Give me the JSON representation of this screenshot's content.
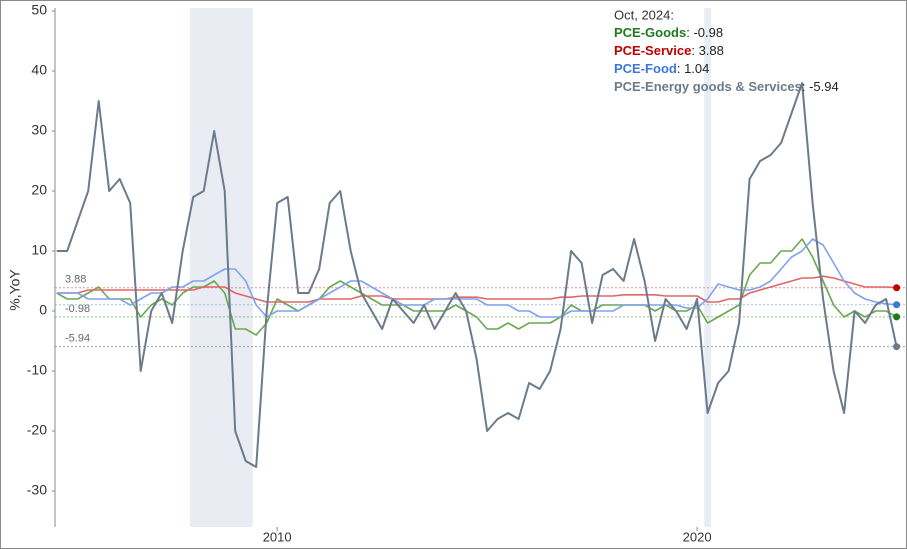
{
  "chart_data": {
    "type": "line",
    "y_label": "%,YoY",
    "legend_title": "Oct, 2024:",
    "legend_separator": ": ",
    "x": [
      2004.75,
      2005,
      2005.25,
      2005.5,
      2005.75,
      2006,
      2006.25,
      2006.5,
      2006.75,
      2007,
      2007.25,
      2007.5,
      2007.75,
      2008,
      2008.25,
      2008.5,
      2008.75,
      2009,
      2009.25,
      2009.5,
      2009.75,
      2010,
      2010.25,
      2010.5,
      2010.75,
      2011,
      2011.25,
      2011.5,
      2011.75,
      2012,
      2012.25,
      2012.5,
      2012.75,
      2013,
      2013.25,
      2013.5,
      2013.75,
      2014,
      2014.25,
      2014.5,
      2014.75,
      2015,
      2015.25,
      2015.5,
      2015.75,
      2016,
      2016.25,
      2016.5,
      2016.75,
      2017,
      2017.25,
      2017.5,
      2017.75,
      2018,
      2018.25,
      2018.5,
      2018.75,
      2019,
      2019.25,
      2019.5,
      2019.75,
      2020,
      2020.25,
      2020.5,
      2020.75,
      2021,
      2021.25,
      2021.5,
      2021.75,
      2022,
      2022.25,
      2022.5,
      2022.75,
      2023,
      2023.25,
      2023.5,
      2023.75,
      2024,
      2024.25,
      2024.5,
      2024.75
    ],
    "xlim": [
      2004.71,
      2024.95
    ],
    "xticks": [
      2010,
      2020
    ],
    "ylim": [
      -36,
      50.5
    ],
    "yticks": [
      -30,
      -20,
      -10,
      0,
      10,
      20,
      30,
      40,
      50
    ],
    "grid": false,
    "shaded_ranges": [
      [
        2007.92,
        2009.42
      ],
      [
        2020.17,
        2020.33
      ]
    ],
    "shade_color": "#e9edf3",
    "series": [
      {
        "name": "PCE-Goods",
        "color": "#6aa84f",
        "text_color": "#1e7a1e",
        "reference_label": true,
        "values": [
          3,
          2,
          2,
          3,
          4,
          2,
          2,
          2,
          -1,
          1,
          2,
          1,
          3,
          4,
          4,
          5,
          3,
          -3,
          -3,
          -4,
          -2,
          2,
          1,
          0,
          1,
          2,
          4,
          5,
          4,
          3,
          2,
          1,
          1,
          1,
          0,
          0,
          0,
          0,
          1,
          0,
          -1,
          -3,
          -3,
          -2,
          -3,
          -2,
          -2,
          -2,
          -1,
          1,
          0,
          0,
          1,
          1,
          1,
          1,
          1,
          0,
          1,
          0,
          0,
          1,
          -2,
          -1,
          0,
          1,
          6,
          8,
          8,
          10,
          10,
          12,
          9,
          5,
          1,
          -1,
          0,
          -1,
          0,
          0,
          -0.98
        ]
      },
      {
        "name": "PCE-Service",
        "color": "#e06666",
        "text_color": "#c00000",
        "reference_label": true,
        "values": [
          3,
          3,
          3,
          3.5,
          3.5,
          3.5,
          3.5,
          3.5,
          3.5,
          3.5,
          3.5,
          3.5,
          3.5,
          3.5,
          4,
          4,
          4,
          3,
          2.5,
          2,
          1.5,
          1.5,
          1.5,
          1.5,
          1.5,
          2,
          2,
          2,
          2,
          2.5,
          2.5,
          2.5,
          2,
          2,
          2,
          2,
          2,
          2,
          2.3,
          2.3,
          2.3,
          2,
          2,
          2,
          2,
          2,
          2,
          2,
          2.3,
          2.3,
          2.5,
          2.5,
          2.5,
          2.5,
          2.7,
          2.7,
          2.7,
          2.7,
          2.5,
          2.5,
          2.5,
          2.5,
          1.5,
          1.5,
          2,
          2,
          3,
          3.5,
          4,
          4.5,
          5,
          5.5,
          5.5,
          5.8,
          5.5,
          5,
          4.5,
          4,
          4,
          4,
          3.88
        ]
      },
      {
        "name": "PCE-Food",
        "color": "#7fa3ef",
        "text_color": "#3c78d8",
        "reference_label": false,
        "values": [
          3,
          3,
          3,
          2,
          2,
          2,
          2,
          1,
          2,
          3,
          3,
          4,
          4,
          5,
          5,
          6,
          7,
          7,
          5,
          1,
          -1,
          0,
          0,
          0,
          1,
          2,
          3,
          4,
          5,
          5,
          4,
          3,
          2,
          1,
          1,
          1,
          2,
          2,
          2,
          2,
          2,
          1,
          1,
          1,
          0,
          0,
          -1,
          -1,
          -1,
          0,
          0,
          0,
          0,
          0,
          1,
          1,
          1,
          1,
          1,
          1,
          0.5,
          0.5,
          2,
          4.5,
          4,
          3.5,
          3.5,
          4,
          5,
          7,
          9,
          10,
          12,
          11,
          8,
          5,
          3,
          2,
          1.5,
          1.2,
          1.04
        ]
      },
      {
        "name": "PCE-Energy goods & Services",
        "color": "#6b7b8c",
        "text_color": "#6b7b8c",
        "reference_label": true,
        "values": [
          10,
          10,
          15,
          20,
          35,
          20,
          22,
          18,
          -10,
          0,
          3,
          -2,
          10,
          19,
          20,
          30,
          20,
          -20,
          -25,
          -26,
          0,
          18,
          19,
          3,
          3,
          7,
          18,
          20,
          10,
          3,
          0,
          -3,
          2,
          0,
          -2,
          1,
          -3,
          0,
          3,
          0,
          -8,
          -20,
          -18,
          -17,
          -18,
          -12,
          -13,
          -10,
          -3,
          10,
          8,
          -2,
          6,
          7,
          5,
          12,
          5,
          -5,
          2,
          0,
          -3,
          2,
          -17,
          -12,
          -10,
          -2,
          22,
          25,
          26,
          28,
          33,
          38,
          18,
          2,
          -10,
          -17,
          0,
          -2,
          1,
          2,
          -5.94
        ]
      }
    ]
  }
}
